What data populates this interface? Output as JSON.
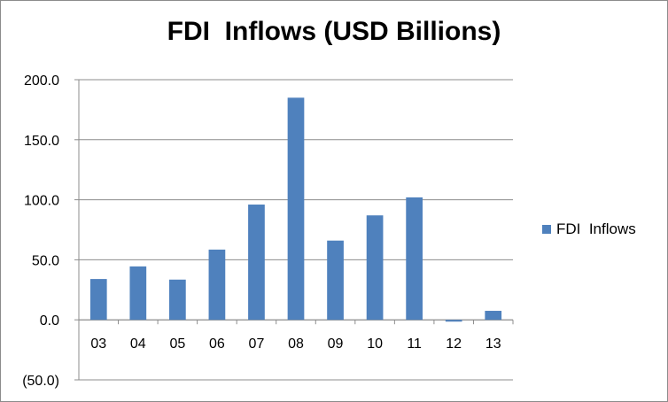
{
  "chart_data": {
    "type": "bar",
    "title": "FDI  Inflows (USD Billions)",
    "categories": [
      "03",
      "04",
      "05",
      "06",
      "07",
      "08",
      "09",
      "10",
      "11",
      "12",
      "13"
    ],
    "series": [
      {
        "name": "FDI  Inflows",
        "values": [
          34.0,
          44.5,
          33.5,
          58.5,
          96.0,
          185.0,
          66.0,
          87.0,
          102.0,
          -1.5,
          7.5
        ],
        "color": "#4f81bd"
      }
    ],
    "ylim": [
      -50,
      200
    ],
    "yticks": [
      -50,
      0,
      50,
      100,
      150,
      200
    ],
    "ytick_labels": [
      "(50.0)",
      "0.0",
      "50.0",
      "100.0",
      "150.0",
      "200.0"
    ],
    "grid": true,
    "legend": "right"
  }
}
